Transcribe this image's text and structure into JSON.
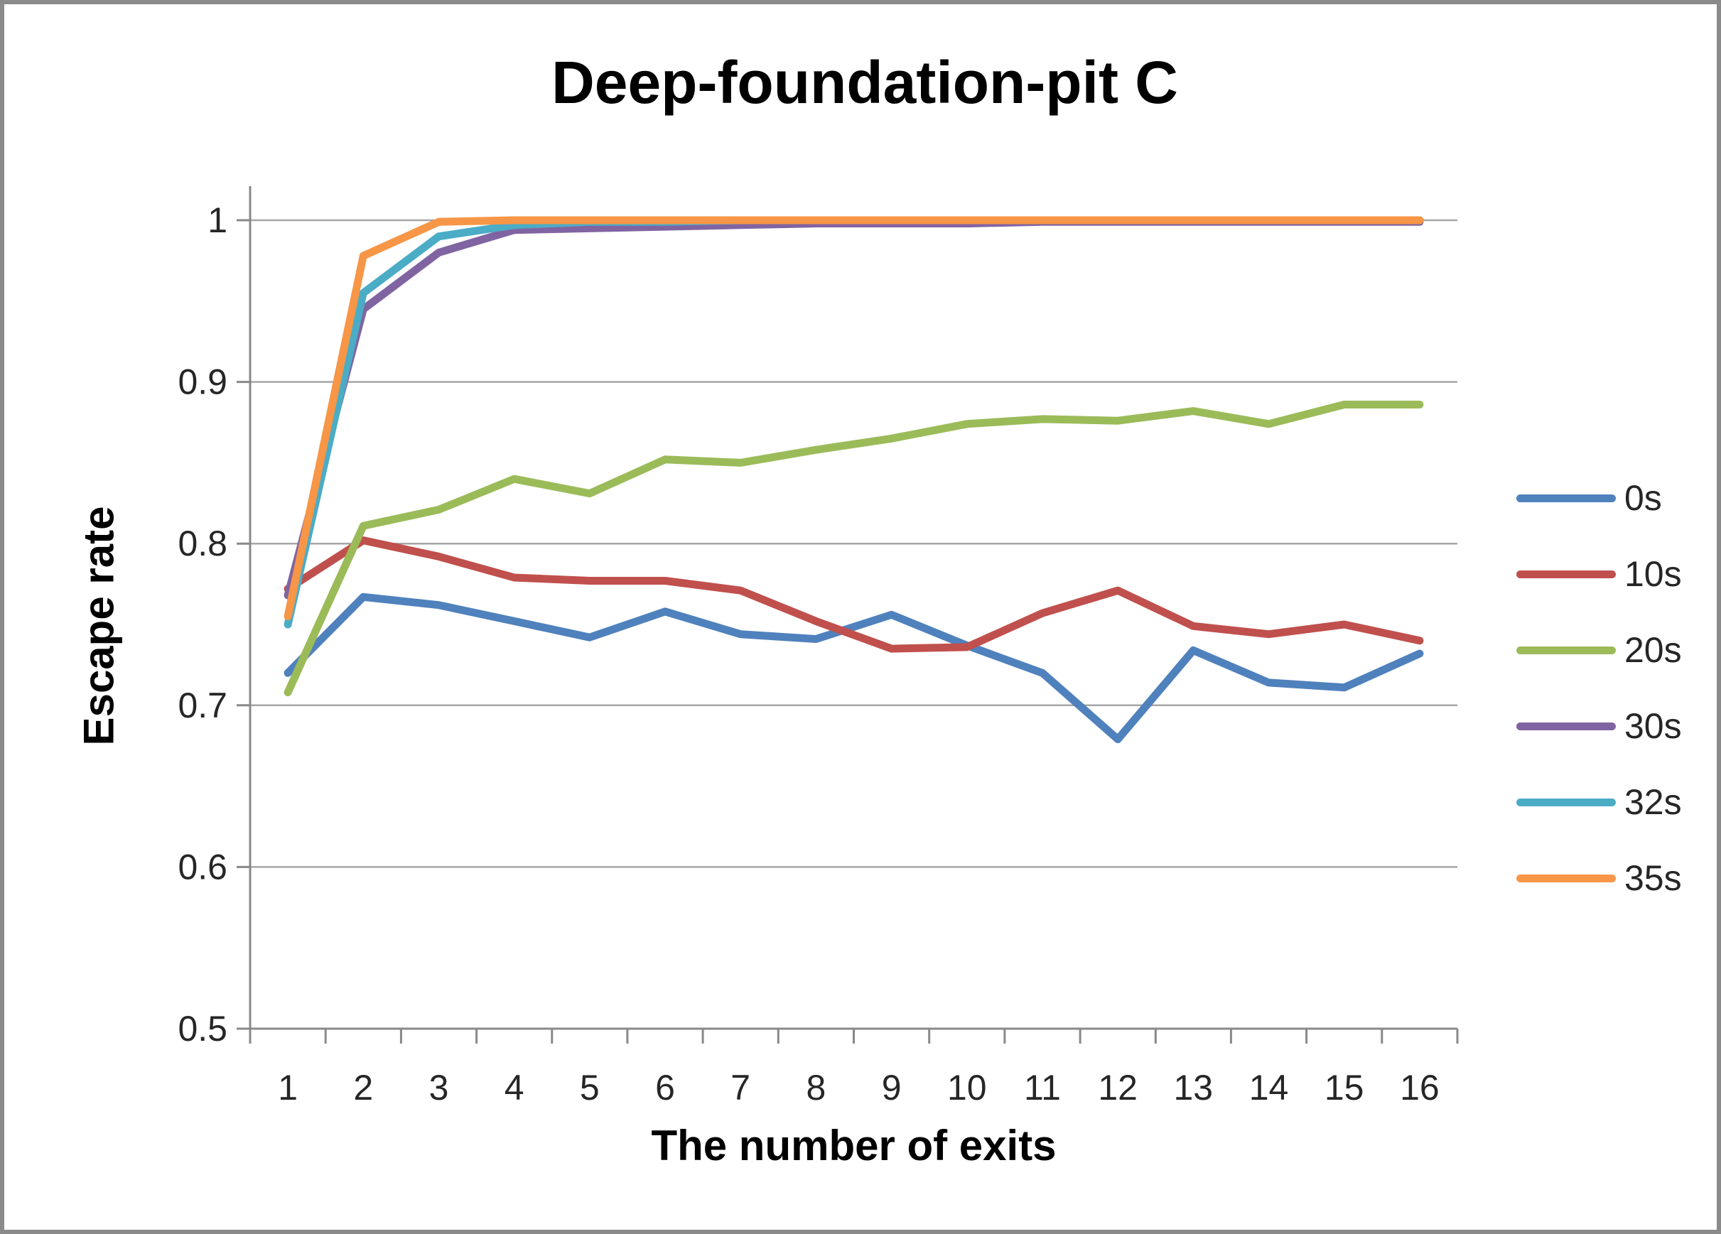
{
  "chart_data": {
    "type": "line",
    "title": "Deep-foundation-pit C",
    "xlabel": "The number of exits",
    "ylabel": "Escape rate",
    "categories": [
      "1",
      "2",
      "3",
      "4",
      "5",
      "6",
      "7",
      "8",
      "9",
      "10",
      "11",
      "12",
      "13",
      "14",
      "15",
      "16"
    ],
    "ylim": [
      0.5,
      1.0
    ],
    "yticks": [
      0.5,
      0.6,
      0.7,
      0.8,
      0.9,
      1
    ],
    "ytick_labels": [
      "0.5",
      "0.6",
      "0.7",
      "0.8",
      "0.9",
      "1"
    ],
    "grid": true,
    "legend_position": "right",
    "axis_color": "#898989",
    "gridline_color": "#A6A6A6",
    "tick_text_color": "#262626",
    "series": [
      {
        "name": "0s",
        "color": "#4F81BD",
        "values": [
          0.72,
          0.767,
          0.762,
          0.752,
          0.742,
          0.758,
          0.744,
          0.741,
          0.756,
          0.737,
          0.72,
          0.679,
          0.734,
          0.714,
          0.711,
          0.732
        ]
      },
      {
        "name": "10s",
        "color": "#C0504D",
        "values": [
          0.772,
          0.802,
          0.792,
          0.779,
          0.777,
          0.777,
          0.771,
          0.752,
          0.735,
          0.736,
          0.757,
          0.771,
          0.749,
          0.744,
          0.75,
          0.74
        ]
      },
      {
        "name": "20s",
        "color": "#9BBB59",
        "values": [
          0.708,
          0.811,
          0.821,
          0.84,
          0.831,
          0.852,
          0.85,
          0.858,
          0.865,
          0.874,
          0.877,
          0.876,
          0.882,
          0.874,
          0.886,
          0.886
        ]
      },
      {
        "name": "30s",
        "color": "#8064A2",
        "values": [
          0.768,
          0.945,
          0.98,
          0.994,
          0.995,
          0.996,
          0.997,
          0.998,
          0.998,
          0.998,
          0.999,
          0.999,
          0.999,
          0.999,
          0.999,
          0.999
        ]
      },
      {
        "name": "32s",
        "color": "#4BACC6",
        "values": [
          0.75,
          0.955,
          0.99,
          0.997,
          0.999,
          0.999,
          1.0,
          1.0,
          1.0,
          1.0,
          1.0,
          1.0,
          1.0,
          1.0,
          1.0,
          1.0
        ]
      },
      {
        "name": "35s",
        "color": "#F79646",
        "values": [
          0.755,
          0.978,
          0.999,
          1.0,
          1.0,
          1.0,
          1.0,
          1.0,
          1.0,
          1.0,
          1.0,
          1.0,
          1.0,
          1.0,
          1.0,
          1.0
        ]
      }
    ]
  }
}
